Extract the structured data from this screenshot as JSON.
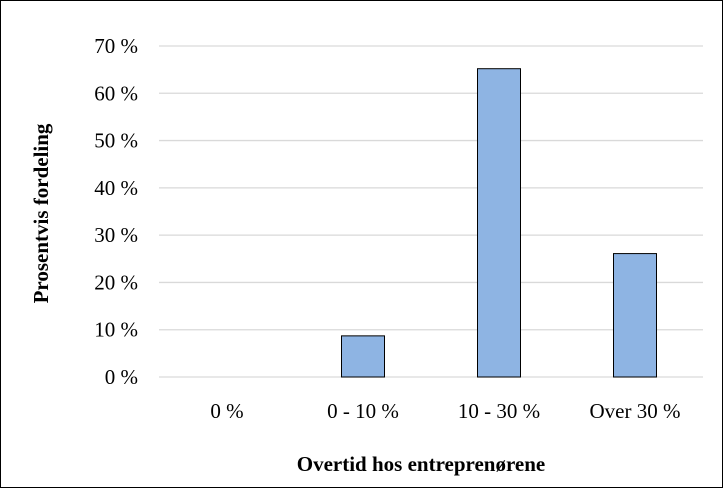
{
  "chart_data": {
    "type": "bar",
    "categories": [
      "0 %",
      "0 - 10 %",
      "10 - 30 %",
      "Over 30 %"
    ],
    "values": [
      0,
      8.7,
      65.2,
      26.1
    ],
    "yticks": [
      "0 %",
      "10 %",
      "20 %",
      "30 %",
      "40 %",
      "50 %",
      "60 %",
      "70 %"
    ],
    "ylim": [
      0,
      70
    ],
    "xlabel": "Overtid hos entreprenørene",
    "ylabel": "Prosentvis fordeling",
    "grid": true,
    "bar_color": "#8eb4e3",
    "bar_edge_color": "#000000",
    "grid_color": "#d9d9d9"
  }
}
